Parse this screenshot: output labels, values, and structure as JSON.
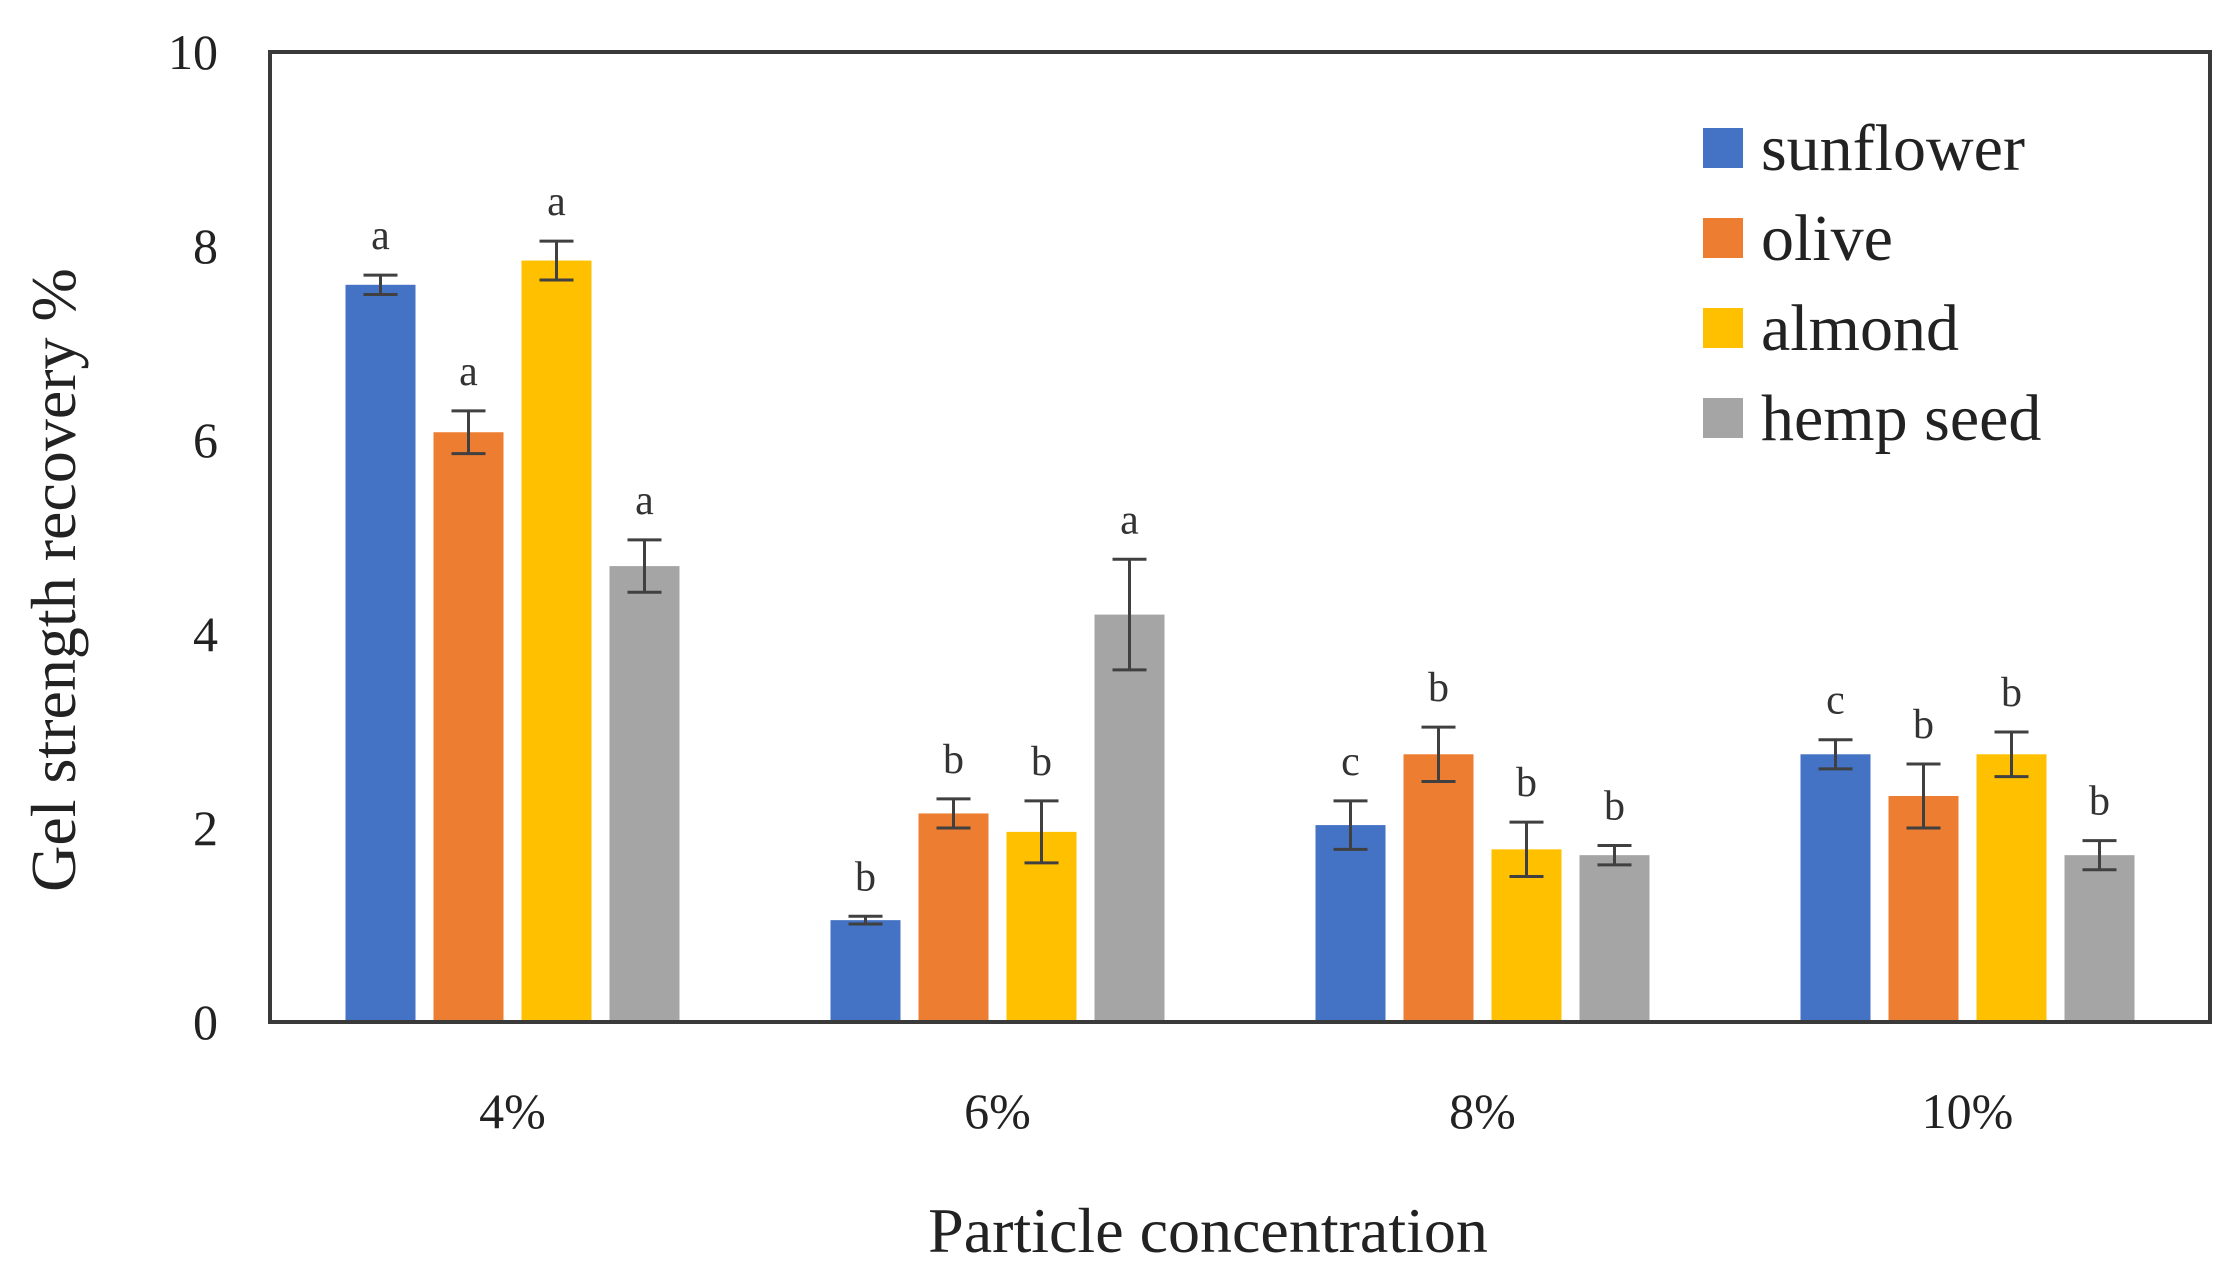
{
  "chart_data": {
    "type": "bar",
    "title": "",
    "xlabel": "Particle concentration",
    "ylabel": "Gel strength recovery %",
    "ylim": [
      0,
      10
    ],
    "yticks": [
      "0",
      "2",
      "4",
      "6",
      "8",
      "10"
    ],
    "grid": false,
    "legend_position": "top-right",
    "categories": [
      "4%",
      "6%",
      "8%",
      "10%"
    ],
    "series": [
      {
        "name": "sunflower",
        "color": "#4472C4",
        "values": [
          7.6,
          1.05,
          2.03,
          2.76
        ],
        "errors": [
          0.1,
          0.04,
          0.25,
          0.15
        ],
        "letters": [
          "a",
          "b",
          "c",
          "c"
        ]
      },
      {
        "name": "olive",
        "color": "#ED7D31",
        "values": [
          6.08,
          2.15,
          2.76,
          2.33
        ],
        "errors": [
          0.22,
          0.15,
          0.28,
          0.33
        ],
        "letters": [
          "a",
          "b",
          "b",
          "b"
        ]
      },
      {
        "name": "almond",
        "color": "#FFC000",
        "values": [
          7.85,
          1.96,
          1.78,
          2.76
        ],
        "errors": [
          0.2,
          0.32,
          0.28,
          0.23
        ],
        "letters": [
          "a",
          "b",
          "b",
          "b"
        ]
      },
      {
        "name": "hemp seed",
        "color": "#A5A5A5",
        "values": [
          4.7,
          4.2,
          1.72,
          1.72
        ],
        "errors": [
          0.27,
          0.57,
          0.1,
          0.15
        ],
        "letters": [
          "a",
          "a",
          "b",
          "b"
        ]
      }
    ]
  }
}
